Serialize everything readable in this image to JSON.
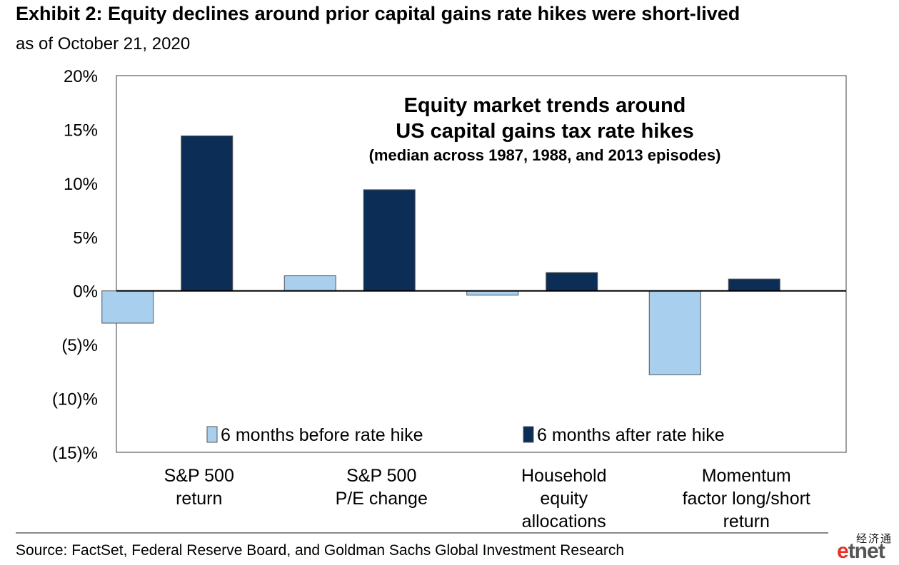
{
  "title": "Exhibit 2: Equity declines around prior capital gains rate hikes were short-lived",
  "subtitle": "as of October 21, 2020",
  "source": "Source: FactSet, Federal Reserve Board, and Goldman Sachs Global Investment Research",
  "watermark": {
    "chinese": "经济通",
    "logo_e": "e",
    "logo_rest": "tnet"
  },
  "colors": {
    "before": "#a9cfee",
    "after": "#0c2d55",
    "axis": "#000000",
    "frame": "#7f7f7f"
  },
  "chart_data": {
    "type": "bar",
    "title_lines": [
      "Equity market trends around",
      "US capital gains tax rate hikes"
    ],
    "subtitle": "(median across 1987, 1988, and 2013 episodes)",
    "categories": [
      [
        "S&P 500",
        "return"
      ],
      [
        "S&P 500",
        "P/E change"
      ],
      [
        "Household",
        "equity",
        "allocations"
      ],
      [
        "Momentum",
        "factor long/short",
        "return"
      ]
    ],
    "series": [
      {
        "name": "6 months before rate hike",
        "values": [
          -3.0,
          1.4,
          -0.4,
          -7.8
        ]
      },
      {
        "name": "6 months after rate hike",
        "values": [
          14.4,
          9.4,
          1.7,
          1.1
        ]
      }
    ],
    "ylim": [
      -15,
      20
    ],
    "yticks": [
      20,
      15,
      10,
      5,
      0,
      -5,
      -10,
      -15
    ],
    "ytick_labels": [
      "20%",
      "15%",
      "10%",
      "5%",
      "0%",
      "(5)%",
      "(10)%",
      "(15)%"
    ],
    "legend_position": "bottom-inside",
    "grid": false
  }
}
